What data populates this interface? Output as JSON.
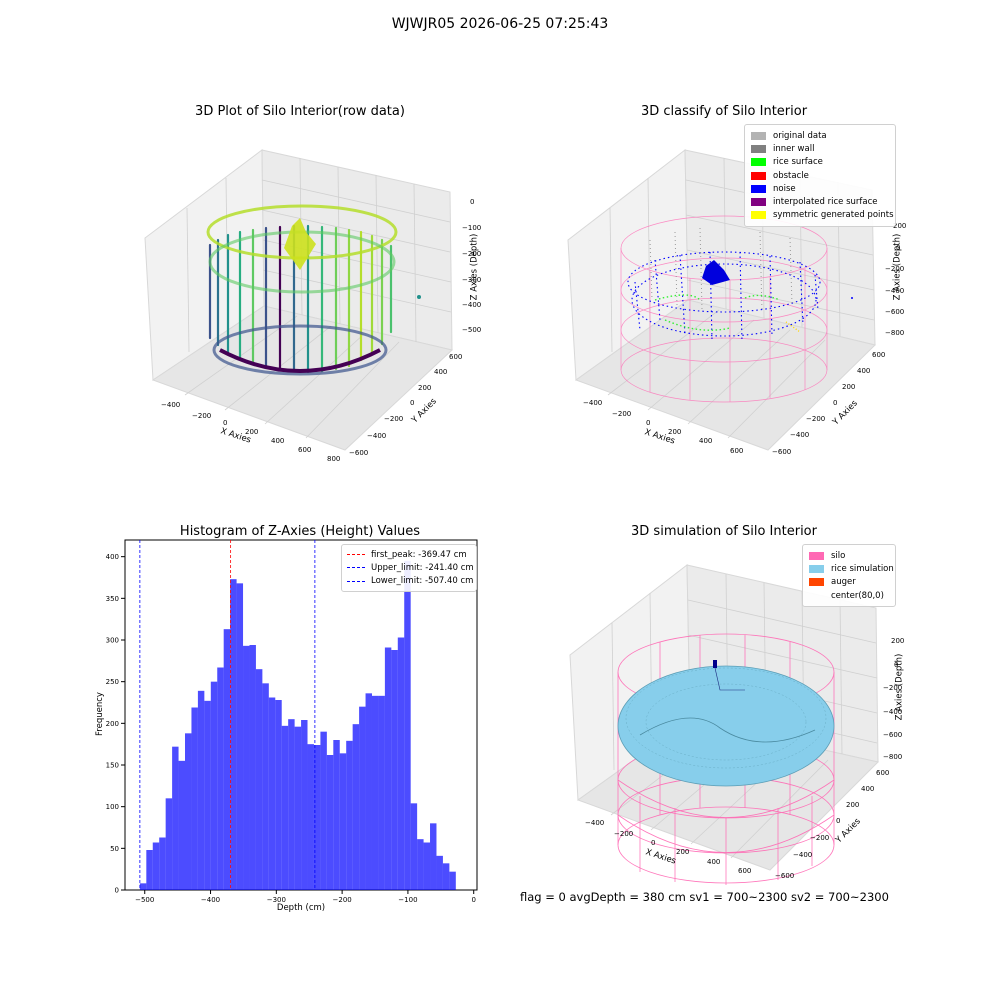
{
  "page": {
    "suptitle": "WJWJR05 2026-06-25 07:25:43"
  },
  "panels": {
    "raw": {
      "title": "3D Plot of Silo Interior(row data)",
      "xlabel": "X Axies",
      "ylabel": "Y Axies",
      "zlabel": "Z Axies (Depth)",
      "xticks": [
        "−400",
        "−200",
        "0",
        "200",
        "400",
        "600",
        "800"
      ],
      "yticks": [
        "600",
        "400",
        "200",
        "0",
        "−200",
        "−400",
        "−600"
      ],
      "zticks": [
        "0",
        "−100",
        "−200",
        "−300",
        "−400",
        "−500"
      ]
    },
    "classify": {
      "title": "3D classify of Silo Interior",
      "xlabel": "X Axies",
      "ylabel": "Y Axies",
      "zlabel": "Z Axies (Depth)",
      "xticks": [
        "−400",
        "−200",
        "0",
        "200",
        "400",
        "600"
      ],
      "yticks": [
        "600",
        "400",
        "200",
        "0",
        "−200",
        "−400",
        "−600"
      ],
      "zticks": [
        "200",
        "0",
        "−200",
        "−400",
        "−600",
        "−800"
      ],
      "legend": [
        {
          "label": "original data",
          "color": "#b3b3b3"
        },
        {
          "label": "inner wall",
          "color": "#808080"
        },
        {
          "label": "rice surface",
          "color": "#00ff00"
        },
        {
          "label": "obstacle",
          "color": "#ff0000"
        },
        {
          "label": "noise",
          "color": "#0000ff"
        },
        {
          "label": "interpolated rice surface",
          "color": "#800080"
        },
        {
          "label": "symmetric generated points",
          "color": "#ffff00"
        }
      ]
    },
    "simulation": {
      "title": "3D simulation of Silo Interior",
      "xlabel": "X Axies",
      "ylabel": "Y Axies",
      "zlabel": "Z Axies (Depth)",
      "xticks": [
        "−400",
        "−200",
        "0",
        "200",
        "400",
        "600"
      ],
      "yticks": [
        "600",
        "400",
        "200",
        "0",
        "−200",
        "−400",
        "−600"
      ],
      "zticks": [
        "200",
        "0",
        "−200",
        "−400",
        "−600",
        "−800"
      ],
      "legend": [
        {
          "label": "silo",
          "color": "#ff69b4"
        },
        {
          "label": "rice simulation",
          "color": "#87ceeb"
        },
        {
          "label": "auger",
          "color": "#ff4500"
        },
        {
          "label": "center(80,0)",
          "color": ""
        }
      ],
      "footer": "flag = 0     avgDepth = 380 cm  sv1 = 700~2300  sv2 = 700~2300"
    }
  },
  "chart_data": [
    {
      "type": "bar",
      "title": "Histogram of Z-Axies (Height) Values",
      "xlabel": "Depth (cm)",
      "ylabel": "Frequency",
      "xlim": [
        -530,
        5
      ],
      "ylim": [
        0,
        420
      ],
      "xticks": [
        -500,
        -400,
        -300,
        -200,
        -100,
        0
      ],
      "yticks": [
        0,
        50,
        100,
        150,
        200,
        250,
        300,
        350,
        400
      ],
      "bin_start": -507.4,
      "bin_width": 9.8,
      "color": "#0000ff",
      "values": [
        8,
        48,
        57,
        63,
        110,
        172,
        155,
        188,
        219,
        239,
        227,
        250,
        267,
        313,
        373,
        368,
        293,
        294,
        265,
        248,
        231,
        228,
        197,
        205,
        196,
        204,
        175,
        174,
        190,
        162,
        180,
        164,
        179,
        199,
        220,
        236,
        233,
        233,
        291,
        288,
        303,
        395,
        104,
        61,
        57,
        80,
        41,
        32,
        22
      ],
      "lines": [
        {
          "label": "first_peak: -369.47 cm",
          "x": -369.47,
          "color": "#ff0000"
        },
        {
          "label": "Upper_limit: -241.40 cm",
          "x": -241.4,
          "color": "#0000ff"
        },
        {
          "label": "Lower_limit: -507.40 cm",
          "x": -507.4,
          "color": "#0000ff"
        }
      ],
      "legend_position": "upper right"
    }
  ]
}
